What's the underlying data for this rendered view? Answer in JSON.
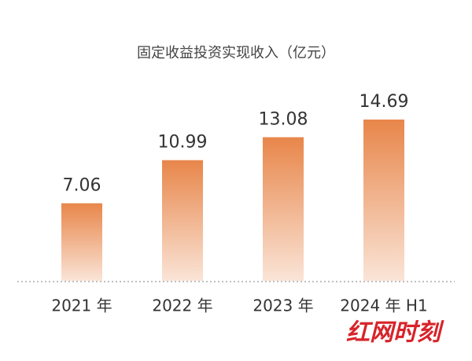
{
  "chart_data": {
    "type": "bar",
    "title": "固定收益投资实现收入（亿元）",
    "categories": [
      "2021 年",
      "2022 年",
      "2023 年",
      "2024 年 H1"
    ],
    "values": [
      7.06,
      10.99,
      13.08,
      14.69
    ],
    "color": "#e8864a",
    "watermark": "红网时刻"
  }
}
